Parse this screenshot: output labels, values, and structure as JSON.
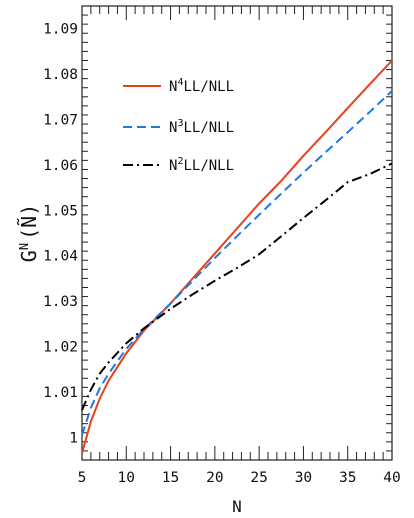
{
  "chart_data": {
    "type": "line",
    "title": "",
    "xlabel": "N",
    "ylabel": "G^N (Ñ)",
    "ylabel_parts": {
      "base": "G",
      "sup": "N",
      "arg": "(Ñ)"
    },
    "xlim": [
      5,
      40
    ],
    "ylim": [
      0.995,
      1.095
    ],
    "x_ticks": [
      5,
      10,
      15,
      20,
      25,
      30,
      35,
      40
    ],
    "x_tick_labels": [
      "5",
      "10",
      "15",
      "20",
      "25",
      "30",
      "35",
      "40"
    ],
    "y_ticks": [
      1.0,
      1.01,
      1.02,
      1.03,
      1.04,
      1.05,
      1.06,
      1.07,
      1.08,
      1.09
    ],
    "y_tick_labels": [
      "1",
      "1.01",
      "1.02",
      "1.03",
      "1.04",
      "1.05",
      "1.06",
      "1.07",
      "1.08",
      "1.09"
    ],
    "grid": false,
    "legend_position": "top-left",
    "series": [
      {
        "name": "N4LL/NLL",
        "label_prefix": "N",
        "label_sup": "4",
        "label_suffix": "LL/NLL",
        "color": "#e8401c",
        "dash": "solid",
        "x": [
          5,
          6,
          7,
          8,
          10,
          12,
          15,
          17.5,
          20,
          22.5,
          25,
          27.5,
          30,
          32.5,
          35,
          37.5,
          40
        ],
        "y": [
          0.9965,
          1.0035,
          1.0085,
          1.0125,
          1.0185,
          1.0235,
          1.0295,
          1.035,
          1.0405,
          1.046,
          1.0515,
          1.0565,
          1.062,
          1.0672,
          1.0725,
          1.0778,
          1.083
        ]
      },
      {
        "name": "N3LL/NLL",
        "label_prefix": "N",
        "label_sup": "3",
        "label_suffix": "LL/NLL",
        "color": "#1f78e8",
        "dash": "dashed",
        "x": [
          5,
          6,
          7,
          8,
          10,
          12,
          15,
          17.5,
          20,
          22.5,
          25,
          27.5,
          30,
          32.5,
          35,
          37.5,
          40
        ],
        "y": [
          1.0005,
          1.0065,
          1.0108,
          1.014,
          1.0195,
          1.0238,
          1.0295,
          1.0345,
          1.0395,
          1.0443,
          1.049,
          1.0537,
          1.0583,
          1.0628,
          1.0672,
          1.0717,
          1.0763
        ]
      },
      {
        "name": "N2LL/NLL",
        "label_prefix": "N",
        "label_sup": "2",
        "label_suffix": "LL/NLL",
        "color": "#000000",
        "dash": "dashdot",
        "x": [
          5,
          6,
          7,
          8,
          10,
          12,
          15,
          17.5,
          20,
          22.5,
          25,
          27.5,
          30,
          32.5,
          35,
          37.5,
          40
        ],
        "y": [
          1.006,
          1.0105,
          1.014,
          1.0165,
          1.0207,
          1.024,
          1.0283,
          1.0315,
          1.0345,
          1.0373,
          1.0403,
          1.0443,
          1.0483,
          1.0522,
          1.0562,
          1.058,
          1.0603
        ]
      }
    ]
  }
}
